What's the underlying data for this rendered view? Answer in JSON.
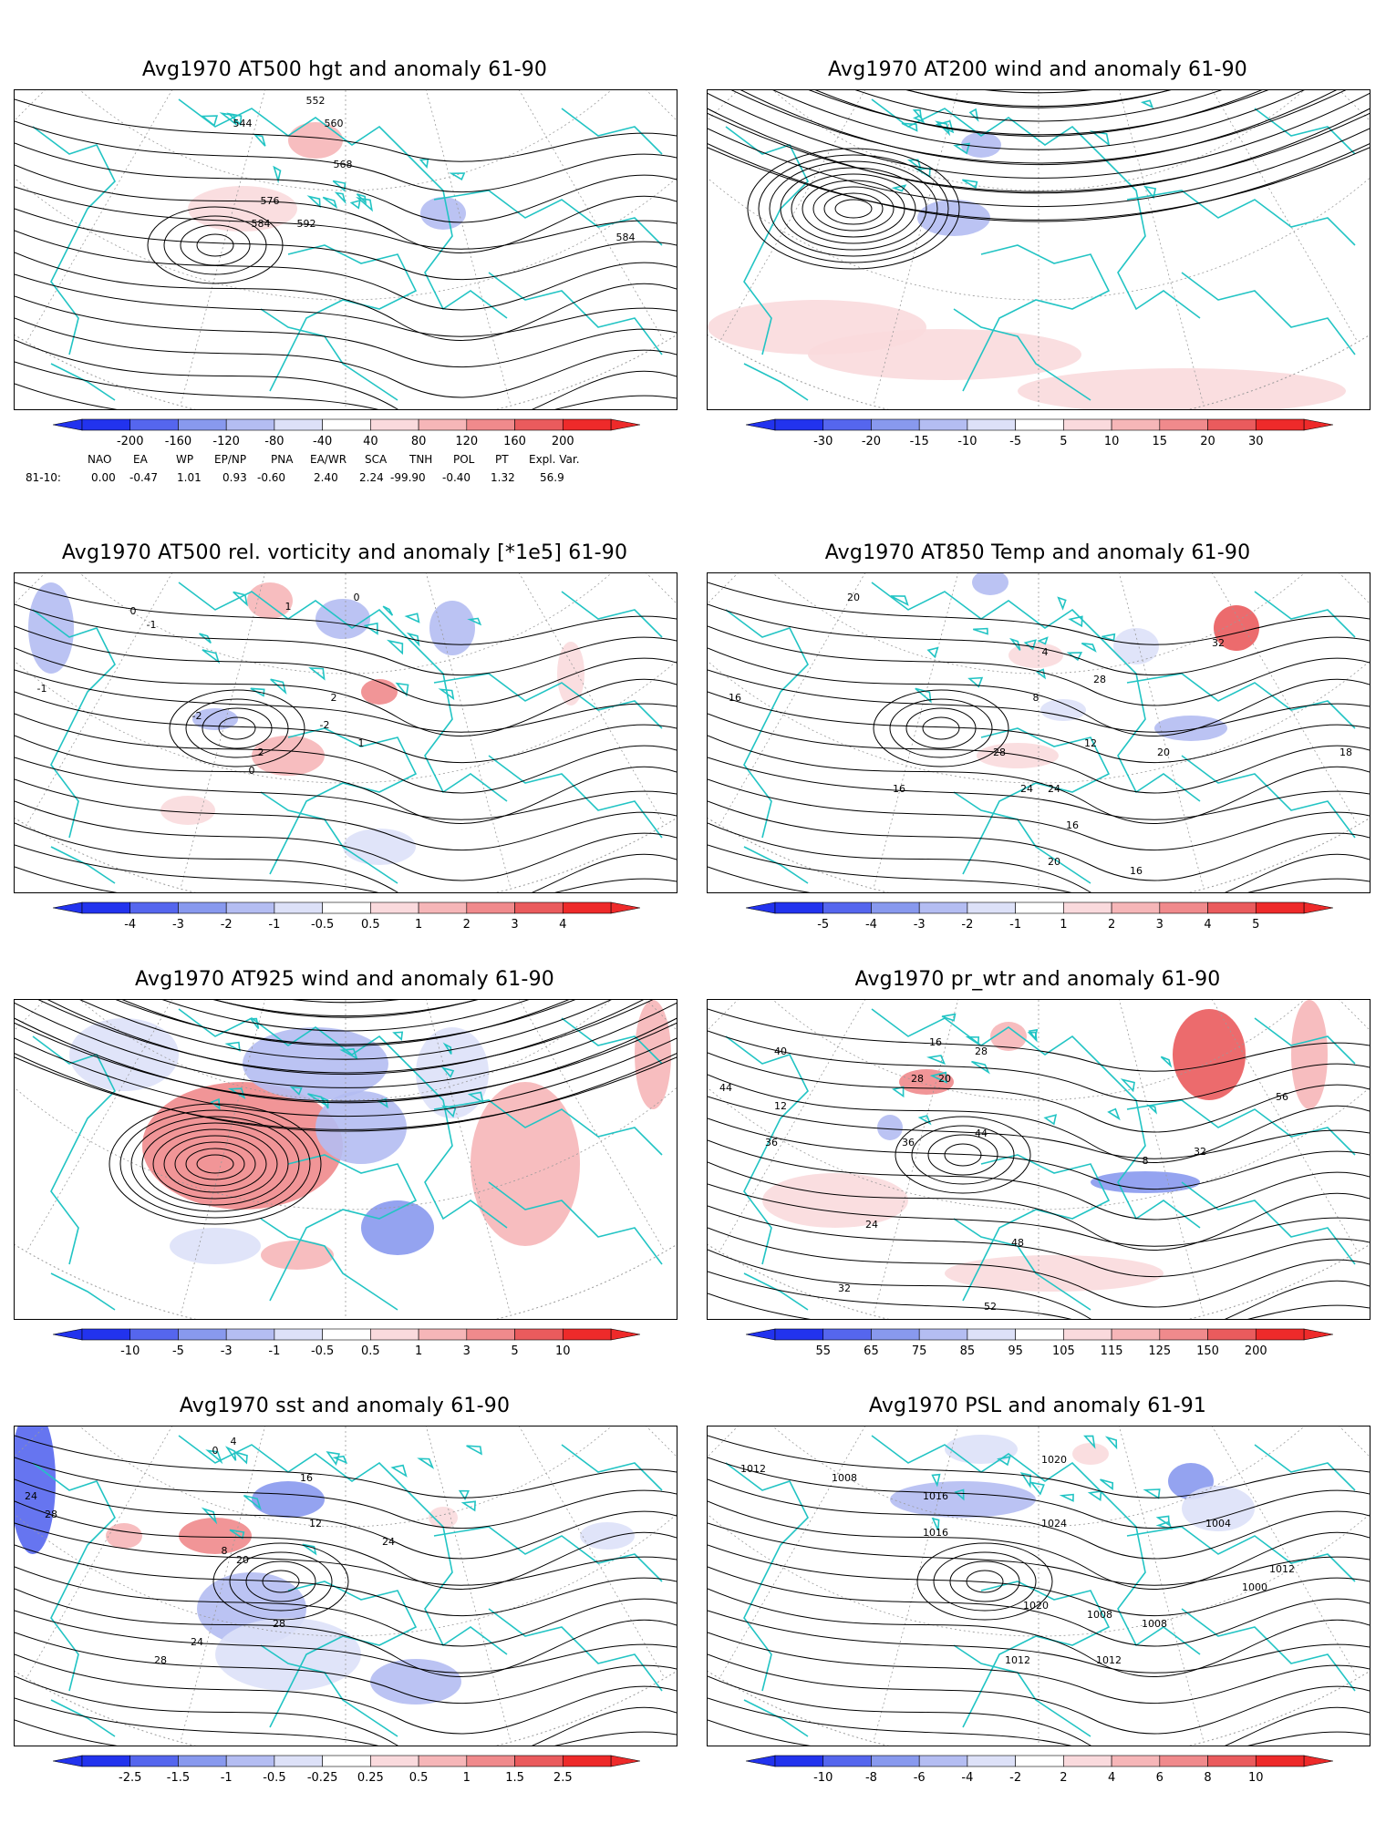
{
  "panels": [
    {
      "id": "p1",
      "title": "Avg1970 AT500 hgt and anomaly 61-90",
      "field": "hgt",
      "contour_labels": [
        "552",
        "544",
        "560",
        "568",
        "576",
        "584",
        "592",
        "584"
      ],
      "colorbar": {
        "labels": [
          "-200",
          "-160",
          "-120",
          "-80",
          "-40",
          "40",
          "80",
          "120",
          "160",
          "200"
        ]
      }
    },
    {
      "id": "p2",
      "title": "Avg1970 AT200 wind and anomaly 61-90",
      "field": "wind",
      "contour_labels": [],
      "colorbar": {
        "labels": [
          "-30",
          "-20",
          "-15",
          "-10",
          "-5",
          "5",
          "10",
          "15",
          "20",
          "30"
        ]
      }
    },
    {
      "id": "p3",
      "title": "Avg1970 AT500 rel. vorticity and anomaly [*1e5] 61-90",
      "field": "vort",
      "contour_labels": [
        "-1",
        "0",
        "1",
        "-2",
        "2",
        "0",
        "-1",
        "1",
        "-2",
        "2",
        "0"
      ],
      "colorbar": {
        "labels": [
          "-4",
          "-3",
          "-2",
          "-1",
          "-0.5",
          "0.5",
          "1",
          "2",
          "3",
          "4"
        ]
      }
    },
    {
      "id": "p4",
      "title": "Avg1970 AT850 Temp and anomaly 61-90",
      "field": "temp",
      "contour_labels": [
        "16",
        "20",
        "8",
        "12",
        "16",
        "16",
        "20",
        "24",
        "28",
        "28",
        "24",
        "20",
        "16",
        "18",
        "32",
        "4"
      ],
      "colorbar": {
        "labels": [
          "-5",
          "-4",
          "-3",
          "-2",
          "-1",
          "1",
          "2",
          "3",
          "4",
          "5"
        ]
      }
    },
    {
      "id": "p5",
      "title": "Avg1970 AT925 wind and anomaly 61-90",
      "field": "wind",
      "contour_labels": [],
      "colorbar": {
        "labels": [
          "-10",
          "-5",
          "-3",
          "-1",
          "-0.5",
          "0.5",
          "1",
          "3",
          "5",
          "10"
        ]
      }
    },
    {
      "id": "p6",
      "title": "Avg1970 pr_wtr and anomaly 61-90",
      "field": "prwtr",
      "contour_labels": [
        "44",
        "36",
        "40",
        "28",
        "32",
        "24",
        "20",
        "16",
        "28",
        "36",
        "44",
        "48",
        "52",
        "40",
        "32",
        "56",
        "12",
        "8"
      ],
      "colorbar": {
        "labels": [
          "55",
          "65",
          "75",
          "85",
          "95",
          "105",
          "115",
          "125",
          "150",
          "200"
        ]
      }
    },
    {
      "id": "p7",
      "title": "Avg1970 sst and anomaly 61-90",
      "field": "sst",
      "contour_labels": [
        "24",
        "28",
        "20",
        "16",
        "12",
        "8",
        "4",
        "0",
        "24",
        "28",
        "24",
        "28"
      ],
      "colorbar": {
        "labels": [
          "-2.5",
          "-1.5",
          "-1",
          "-0.5",
          "-0.25",
          "0.25",
          "0.5",
          "1",
          "1.5",
          "2.5"
        ]
      }
    },
    {
      "id": "p8",
      "title": "Avg1970 PSL and anomaly 61-91",
      "field": "psl",
      "contour_labels": [
        "1012",
        "1008",
        "1016",
        "1020",
        "1024",
        "1020",
        "1016",
        "1012",
        "1008",
        "1004",
        "1000",
        "1012",
        "1008",
        "1012"
      ],
      "colorbar": {
        "labels": [
          "-10",
          "-8",
          "-6",
          "-4",
          "-2",
          "2",
          "4",
          "6",
          "8",
          "10"
        ]
      }
    }
  ],
  "teleconnections": {
    "headers": [
      "NAO",
      "EA",
      "WP",
      "EP/NP",
      "PNA",
      "EA/WR",
      "SCA",
      "TNH",
      "POL",
      "PT",
      "Expl. Var."
    ],
    "row_label": "81-10:",
    "values": [
      "0.00",
      "-0.47",
      "1.01",
      "0.93",
      "-0.60",
      "2.40",
      "2.24",
      "-99.90",
      "-0.40",
      "1.32",
      "56.9"
    ]
  },
  "colors": {
    "coast": "#22c4c4",
    "contour": "#000000",
    "grid": "#9a9a9a",
    "blues": [
      "#2233ee",
      "#5566ee",
      "#8899ee",
      "#b4bdf2",
      "#dde1f8"
    ],
    "reds": [
      "#fadadd",
      "#f6b6b8",
      "#f08a8c",
      "#ea5b5d",
      "#ee2a2a"
    ]
  }
}
